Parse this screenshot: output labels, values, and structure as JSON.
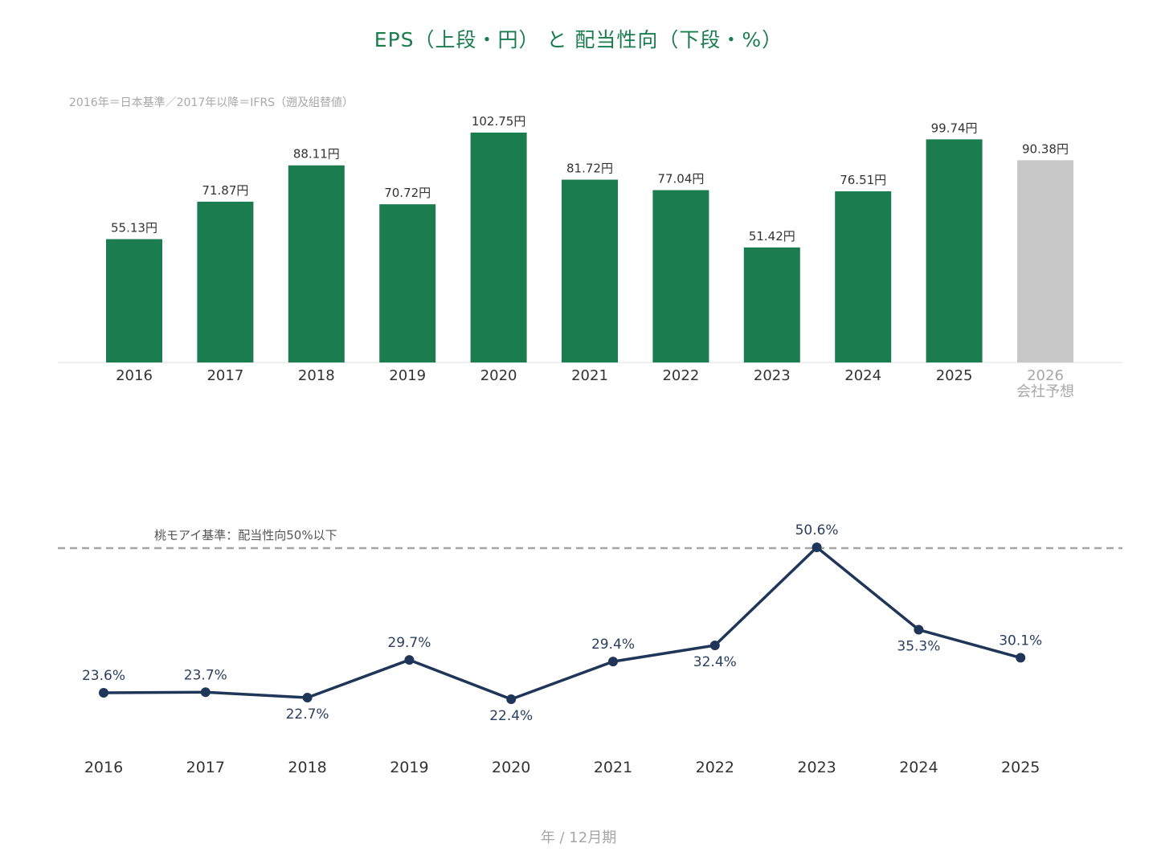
{
  "title": "EPS（上段・円） と 配当性向（下段・%）",
  "note_top": "2016年＝日本基準／2017年以降＝IFRS（遡及組替値）",
  "note_benchmark": "桃モアイ基準：配当性向50%以下",
  "footer": "年 / 12月期",
  "colors": {
    "bar": "#1b7d4f",
    "forecast_bar": "#c7c7c7",
    "forecast_text": "#a8a8a8",
    "line": "#1f3659",
    "benchmark": "#a6a6a6"
  },
  "chart_data": [
    {
      "type": "bar",
      "series_unit": "円",
      "categories": [
        "2016",
        "2017",
        "2018",
        "2019",
        "2020",
        "2021",
        "2022",
        "2023",
        "2024",
        "2025",
        "2026"
      ],
      "category_sublabels": [
        "",
        "",
        "",
        "",
        "",
        "",
        "",
        "",
        "",
        "",
        "会社予想"
      ],
      "values": [
        55.13,
        71.87,
        88.11,
        70.72,
        102.75,
        81.72,
        77.04,
        51.42,
        76.51,
        99.74,
        90.38
      ],
      "value_labels": [
        "55.13円",
        "71.87円",
        "88.11円",
        "70.72円",
        "102.75円",
        "81.72円",
        "77.04円",
        "51.42円",
        "76.51円",
        "99.74円",
        "90.38円"
      ],
      "forecast": [
        false,
        false,
        false,
        false,
        false,
        false,
        false,
        false,
        false,
        false,
        true
      ],
      "ylim": [
        0,
        110
      ]
    },
    {
      "type": "line",
      "categories": [
        "2016",
        "2017",
        "2018",
        "2019",
        "2020",
        "2021",
        "2022",
        "2023",
        "2024",
        "2025"
      ],
      "values": [
        23.6,
        23.7,
        22.7,
        29.7,
        22.4,
        29.4,
        32.4,
        50.6,
        35.3,
        30.1
      ],
      "value_labels": [
        "23.6%",
        "23.7%",
        "22.7%",
        "29.7%",
        "22.4%",
        "29.4%",
        "32.4%",
        "50.6%",
        "35.3%",
        "30.1%"
      ],
      "label_positions": [
        "above",
        "above",
        "below",
        "above",
        "below",
        "above",
        "below",
        "above",
        "below",
        "above"
      ],
      "benchmark": 50,
      "ylim": [
        18,
        54
      ]
    }
  ]
}
